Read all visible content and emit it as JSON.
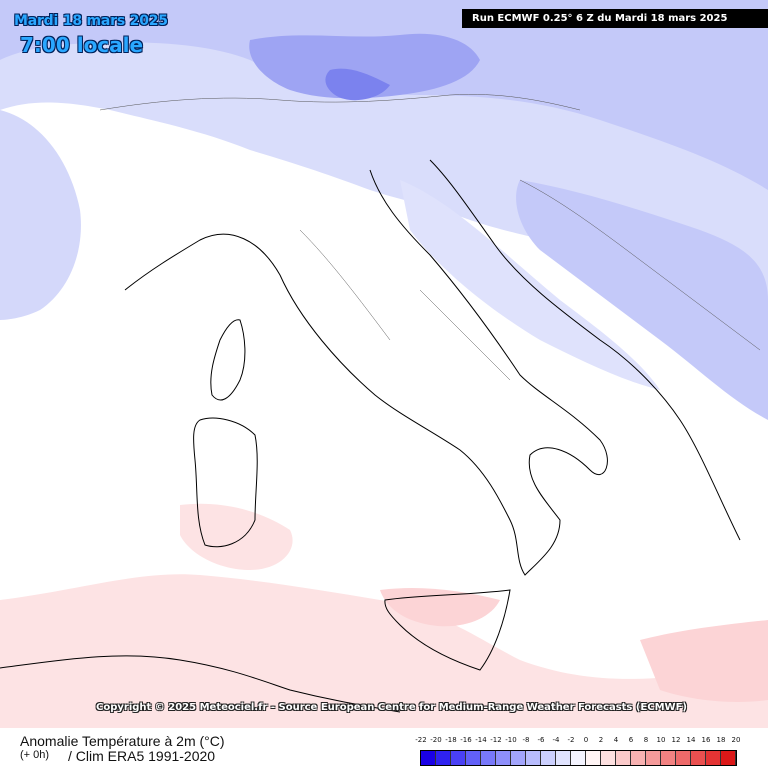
{
  "header": {
    "date": "Mardi 18 mars 2025",
    "local_time": "7:00 locale",
    "run_info": "Run ECMWF 0.25° 6 Z du Mardi 18 mars 2025"
  },
  "map": {
    "copyright": "Copyright © 2025 Meteociel.fr - Source European Centre for Medium-Range Weather Forecasts (ECMWF)"
  },
  "footer": {
    "variable_title": "Anomalie Température à 2m (°C)",
    "lead": "(+ 0h)",
    "climatology": "/ Clim ERA5 1991-2020"
  },
  "legend": {
    "ticks": [
      "-22",
      "-20",
      "-18",
      "-16",
      "-14",
      "-12",
      "-10",
      "-8",
      "-6",
      "-4",
      "-2",
      "0",
      "2",
      "4",
      "6",
      "8",
      "10",
      "12",
      "14",
      "16",
      "18",
      "20"
    ],
    "colors": [
      "#1a00e6",
      "#2f22f0",
      "#4a40f5",
      "#6260f8",
      "#7878fa",
      "#8e8ffb",
      "#a3a5fc",
      "#b8bcfd",
      "#ccd0fe",
      "#e0e3fe",
      "#f4f4ff",
      "#fff4f4",
      "#fde0e0",
      "#fbcaca",
      "#f8b2b2",
      "#f59a9a",
      "#f28282",
      "#ee6a6a",
      "#ea5050",
      "#e43434",
      "#dc1818"
    ]
  }
}
